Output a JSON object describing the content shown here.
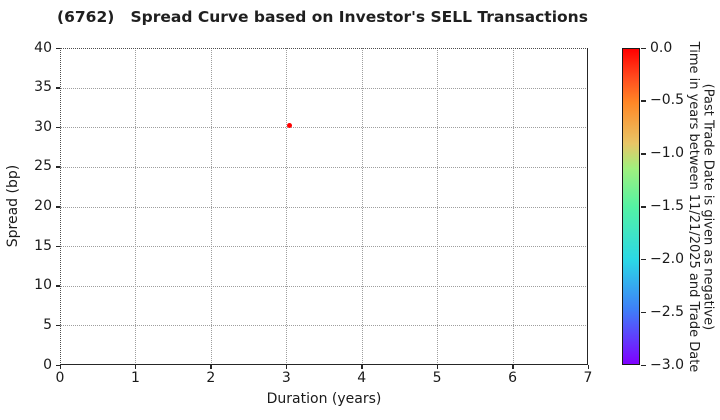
{
  "chart_data": {
    "type": "scatter",
    "title": "(6762)   Spread Curve based on Investor's SELL Transactions",
    "xlabel": "Duration (years)",
    "ylabel": "Spread (bp)",
    "xlim": [
      0,
      7
    ],
    "ylim": [
      0,
      40
    ],
    "x_ticks": [
      0,
      1,
      2,
      3,
      4,
      5,
      6,
      7
    ],
    "y_ticks": [
      0,
      5,
      10,
      15,
      20,
      25,
      30,
      35,
      40
    ],
    "grid": true,
    "grid_style": "dotted",
    "legend": "none",
    "points": [
      {
        "x": 3.04,
        "y": 30.2,
        "time_value": 0.0,
        "color": "#ff0000"
      }
    ],
    "colorbar": {
      "position": "right",
      "title_lines": [
        "Time in years between 11/21/2025 and Trade Date",
        "(Past Trade Date is given as negative)"
      ],
      "tick_labels": [
        "0.0",
        "−0.5",
        "−1.0",
        "−1.5",
        "−2.0",
        "−2.5",
        "−3.0"
      ],
      "tick_values": [
        0.0,
        -0.5,
        -1.0,
        -1.5,
        -2.0,
        -2.5,
        -3.0
      ],
      "range_top_to_bottom": [
        0.0,
        -3.0
      ],
      "gradient_stops": [
        {
          "pos": 0.0,
          "color": "#ff0000"
        },
        {
          "pos": 0.09,
          "color": "#ff4b1e"
        },
        {
          "pos": 0.17,
          "color": "#ff8726"
        },
        {
          "pos": 0.3,
          "color": "#e8c566"
        },
        {
          "pos": 0.38,
          "color": "#9ff07e"
        },
        {
          "pos": 0.5,
          "color": "#54f2a3"
        },
        {
          "pos": 0.67,
          "color": "#2bd8e6"
        },
        {
          "pos": 0.83,
          "color": "#3f7df8"
        },
        {
          "pos": 1.0,
          "color": "#7f00ff"
        }
      ]
    }
  }
}
